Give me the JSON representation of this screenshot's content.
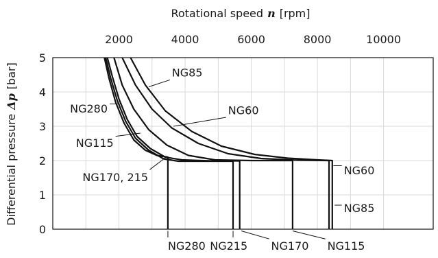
{
  "chart_data": {
    "type": "line",
    "xlabel": "Rotational speed",
    "xlabel_symbol": "n",
    "xlabel_unit": "[rpm]",
    "ylabel": "Differential pressure",
    "ylabel_symbol": "Δp",
    "ylabel_unit": "[bar]",
    "x_axis_position": "top",
    "xlim": [
      0,
      11500
    ],
    "ylim": [
      0,
      5
    ],
    "xticks": [
      "2000",
      "4000",
      "6000",
      "8000",
      "10000"
    ],
    "yticks": [
      "0",
      "1",
      "2",
      "3",
      "4",
      "5"
    ],
    "grid": true,
    "series": [
      {
        "name": "NG280",
        "points": [
          [
            1560,
            5
          ],
          [
            1700,
            4.4
          ],
          [
            1900,
            3.7
          ],
          [
            2150,
            3.1
          ],
          [
            2450,
            2.6
          ],
          [
            2800,
            2.3
          ],
          [
            3150,
            2.15
          ],
          [
            3480,
            2.1
          ],
          [
            3480,
            0
          ]
        ]
      },
      {
        "name": "NG215",
        "points": [
          [
            1600,
            5
          ],
          [
            1750,
            4.4
          ],
          [
            1950,
            3.75
          ],
          [
            2200,
            3.15
          ],
          [
            2500,
            2.65
          ],
          [
            2900,
            2.3
          ],
          [
            3350,
            2.05
          ],
          [
            3800,
            1.98
          ],
          [
            4600,
            1.98
          ],
          [
            5450,
            1.98
          ],
          [
            5450,
            0
          ]
        ]
      },
      {
        "name": "NG170",
        "points": [
          [
            1650,
            5
          ],
          [
            1800,
            4.45
          ],
          [
            2000,
            3.8
          ],
          [
            2250,
            3.2
          ],
          [
            2550,
            2.7
          ],
          [
            2950,
            2.35
          ],
          [
            3400,
            2.1
          ],
          [
            3900,
            2.02
          ],
          [
            4800,
            1.99
          ],
          [
            5650,
            1.99
          ],
          [
            5650,
            0
          ]
        ]
      },
      {
        "name": "NG115",
        "points": [
          [
            1850,
            5
          ],
          [
            2100,
            4.2
          ],
          [
            2450,
            3.5
          ],
          [
            2900,
            2.9
          ],
          [
            3450,
            2.45
          ],
          [
            4100,
            2.15
          ],
          [
            4900,
            2.02
          ],
          [
            6000,
            2.0
          ],
          [
            7250,
            2.0
          ],
          [
            7250,
            0
          ]
        ]
      },
      {
        "name": "NG60",
        "points": [
          [
            2100,
            5
          ],
          [
            2500,
            4.2
          ],
          [
            3000,
            3.5
          ],
          [
            3600,
            2.95
          ],
          [
            4400,
            2.5
          ],
          [
            5300,
            2.2
          ],
          [
            6300,
            2.06
          ],
          [
            7400,
            2.01
          ],
          [
            8350,
            2.0
          ],
          [
            8350,
            0
          ]
        ]
      },
      {
        "name": "NG85",
        "points": [
          [
            2350,
            5
          ],
          [
            2800,
            4.2
          ],
          [
            3400,
            3.45
          ],
          [
            4200,
            2.85
          ],
          [
            5100,
            2.42
          ],
          [
            6100,
            2.18
          ],
          [
            7100,
            2.07
          ],
          [
            8000,
            2.02
          ],
          [
            8450,
            2.0
          ],
          [
            8450,
            0
          ]
        ]
      }
    ],
    "annotations": [
      {
        "text": "NG85",
        "target": [
          2900,
          4.15
        ],
        "label_at": [
          3600,
          4.45
        ]
      },
      {
        "text": "NG280",
        "target": [
          2050,
          3.65
        ],
        "label_at": [
          520,
          3.4
        ]
      },
      {
        "text": "NG60",
        "target": [
          3650,
          3.0
        ],
        "label_at": [
          5300,
          3.35
        ]
      },
      {
        "text": "NG115",
        "target": [
          2650,
          2.8
        ],
        "label_at": [
          700,
          2.4
        ]
      },
      {
        "text": "NG170, 215",
        "target": [
          3400,
          2.08
        ],
        "label_at": [
          900,
          1.4
        ]
      },
      {
        "text": "NG60",
        "target": [
          8480,
          1.85
        ],
        "label_at": [
          8800,
          1.6
        ]
      },
      {
        "text": "NG85",
        "target": [
          8520,
          0.7
        ],
        "label_at": [
          8800,
          0.5
        ]
      },
      {
        "text": "NG280",
        "target": [
          3480,
          -0.05
        ],
        "label_at": [
          3480,
          -0.6
        ]
      },
      {
        "text": "NG215",
        "target": [
          5450,
          -0.05
        ],
        "label_at": [
          4750,
          -0.6
        ]
      },
      {
        "text": "NG170",
        "target": [
          5700,
          -0.05
        ],
        "label_at": [
          6600,
          -0.6
        ]
      },
      {
        "text": "NG115",
        "target": [
          7250,
          -0.05
        ],
        "label_at": [
          8300,
          -0.6
        ]
      }
    ]
  }
}
